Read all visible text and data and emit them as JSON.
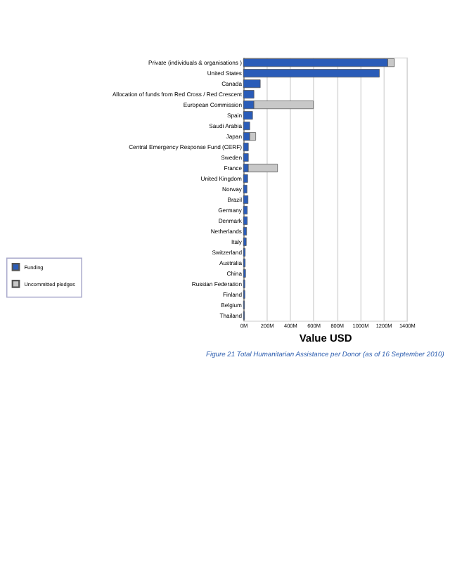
{
  "chart_data": {
    "type": "bar",
    "orientation": "horizontal",
    "stacked": true,
    "title": "Figure 21 Total Humanitarian Assistance per Donor (as of 16 September 2010)",
    "xlabel": "Value USD",
    "categories": [
      "Private (individuals & organisations )",
      "United States",
      "Canada",
      "Allocation of funds from Red Cross / Red Crescent",
      "European Commission",
      "Spain",
      "Saudi Arabia",
      "Japan",
      "Central Emergency Response Fund (CERF)",
      "Sweden",
      "France",
      "United Kingdom",
      "Norway",
      "Brazil",
      "Germany",
      "Denmark",
      "Netherlands",
      "Italy",
      "Switzerland",
      "Australia",
      "China",
      "Russian Federation",
      "Finland",
      "Belgium",
      "Thailand"
    ],
    "series": [
      {
        "name": "Funding",
        "color": "#2a5cb8",
        "values": [
          1237,
          1165,
          144,
          90,
          90,
          78,
          54,
          54,
          42,
          42,
          42,
          36,
          30,
          39,
          33,
          33,
          27,
          24,
          15,
          15,
          18,
          12,
          12,
          9,
          9
        ]
      },
      {
        "name": "Uncommitted pledges",
        "color": "#c8c8c8",
        "values": [
          57,
          null,
          null,
          null,
          509,
          null,
          null,
          51,
          null,
          null,
          250,
          null,
          null,
          null,
          null,
          null,
          null,
          null,
          null,
          null,
          null,
          null,
          null,
          null,
          null
        ]
      }
    ],
    "xlim": [
      0,
      1400
    ],
    "xticks": [
      {
        "value": 0,
        "label": "0M"
      },
      {
        "value": 200,
        "label": "200M"
      },
      {
        "value": 400,
        "label": "400M"
      },
      {
        "value": 600,
        "label": "600M"
      },
      {
        "value": 800,
        "label": "800M"
      },
      {
        "value": 1000,
        "label": "1000M"
      },
      {
        "value": 1200,
        "label": "1200M"
      },
      {
        "value": 1400,
        "label": "1400M"
      }
    ],
    "grid": "x",
    "legend": "bottom left"
  }
}
